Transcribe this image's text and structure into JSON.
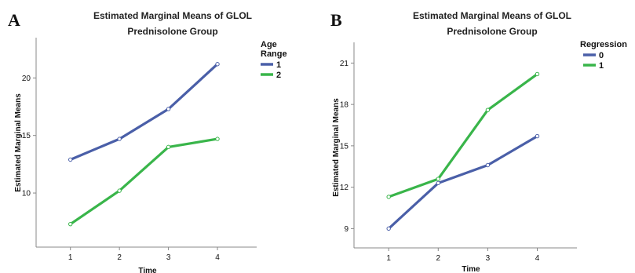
{
  "chart_data": [
    {
      "panel_letter": "A",
      "type": "line",
      "title": "Estimated Marginal Means of GLOL",
      "subtitle": "Prednisolone Group",
      "xlabel": "Time",
      "ylabel": "Estimated Marginal Means",
      "categories": [
        "1",
        "2",
        "3",
        "4"
      ],
      "xlim": [
        0.3,
        4.8
      ],
      "ylim": [
        5.3,
        23.5
      ],
      "yticks": [
        10,
        15,
        20
      ],
      "legend_title": "Age Range",
      "legend_position": "top-right",
      "series": [
        {
          "name": "1",
          "color": "#4a5fa8",
          "values": [
            12.9,
            14.7,
            17.3,
            21.2
          ]
        },
        {
          "name": "2",
          "color": "#39b54a",
          "values": [
            7.3,
            10.2,
            14.0,
            14.7
          ]
        }
      ]
    },
    {
      "panel_letter": "B",
      "type": "line",
      "title": "Estimated Marginal Means of GLOL",
      "subtitle": "Prednisolone Group",
      "xlabel": "Time",
      "ylabel": "Estimated Marginal Means",
      "categories": [
        "1",
        "2",
        "3",
        "4"
      ],
      "xlim": [
        0.3,
        4.8
      ],
      "ylim": [
        7.6,
        22.5
      ],
      "yticks": [
        9,
        12,
        15,
        18,
        21
      ],
      "legend_title": "Regression",
      "legend_position": "top-right",
      "series": [
        {
          "name": "0",
          "color": "#4a5fa8",
          "values": [
            9.0,
            12.3,
            13.6,
            15.7
          ]
        },
        {
          "name": "1",
          "color": "#39b54a",
          "values": [
            11.3,
            12.6,
            17.6,
            20.2
          ]
        }
      ]
    }
  ]
}
